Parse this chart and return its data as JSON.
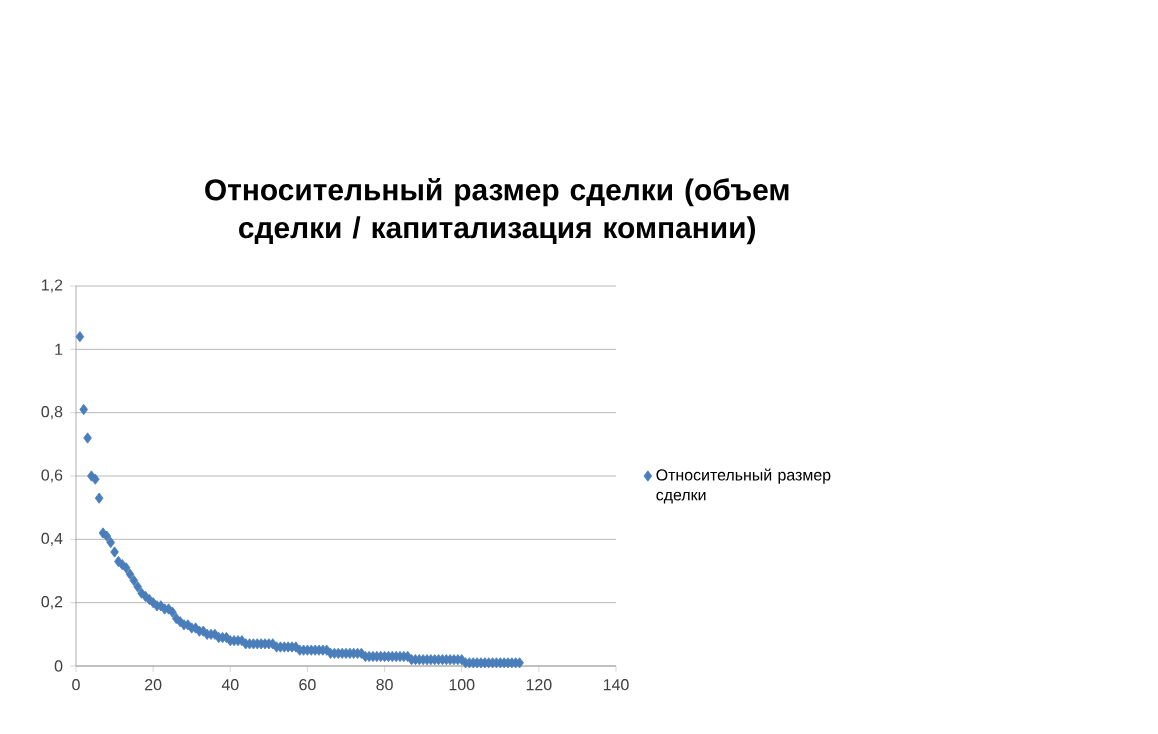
{
  "chart_data": {
    "type": "scatter",
    "title": "Относительный размер сделки (объем сделки / капитализация компании)",
    "x": [
      1,
      2,
      3,
      4,
      5,
      6,
      7,
      8,
      9,
      10,
      11,
      12,
      13,
      14,
      15,
      16,
      17,
      18,
      19,
      20,
      21,
      22,
      23,
      24,
      25,
      26,
      27,
      28,
      29,
      30,
      31,
      32,
      33,
      34,
      35,
      36,
      37,
      38,
      39,
      40,
      41,
      42,
      43,
      44,
      45,
      46,
      47,
      48,
      49,
      50,
      51,
      52,
      53,
      54,
      55,
      56,
      57,
      58,
      59,
      60,
      61,
      62,
      63,
      64,
      65,
      66,
      67,
      68,
      69,
      70,
      71,
      72,
      73,
      74,
      75,
      76,
      77,
      78,
      79,
      80,
      81,
      82,
      83,
      84,
      85,
      86,
      87,
      88,
      89,
      90,
      91,
      92,
      93,
      94,
      95,
      96,
      97,
      98,
      99,
      100,
      101,
      102,
      103,
      104,
      105,
      106,
      107,
      108,
      109,
      110,
      111,
      112,
      113,
      114,
      115
    ],
    "series": [
      {
        "name": "Относительный размер сделки",
        "color": "#4a7ebb",
        "values": [
          1.04,
          0.81,
          0.72,
          0.6,
          0.59,
          0.53,
          0.42,
          0.41,
          0.39,
          0.36,
          0.33,
          0.32,
          0.31,
          0.29,
          0.27,
          0.25,
          0.23,
          0.22,
          0.21,
          0.2,
          0.19,
          0.19,
          0.18,
          0.18,
          0.17,
          0.15,
          0.14,
          0.13,
          0.13,
          0.12,
          0.12,
          0.11,
          0.11,
          0.1,
          0.1,
          0.1,
          0.09,
          0.09,
          0.09,
          0.08,
          0.08,
          0.08,
          0.08,
          0.07,
          0.07,
          0.07,
          0.07,
          0.07,
          0.07,
          0.07,
          0.07,
          0.06,
          0.06,
          0.06,
          0.06,
          0.06,
          0.06,
          0.05,
          0.05,
          0.05,
          0.05,
          0.05,
          0.05,
          0.05,
          0.05,
          0.04,
          0.04,
          0.04,
          0.04,
          0.04,
          0.04,
          0.04,
          0.04,
          0.04,
          0.03,
          0.03,
          0.03,
          0.03,
          0.03,
          0.03,
          0.03,
          0.03,
          0.03,
          0.03,
          0.03,
          0.03,
          0.02,
          0.02,
          0.02,
          0.02,
          0.02,
          0.02,
          0.02,
          0.02,
          0.02,
          0.02,
          0.02,
          0.02,
          0.02,
          0.02,
          0.01,
          0.01,
          0.01,
          0.01,
          0.01,
          0.01,
          0.01,
          0.01,
          0.01,
          0.01,
          0.01,
          0.01,
          0.01,
          0.01,
          0.01
        ]
      }
    ],
    "xlim": [
      0,
      140
    ],
    "xticks": [
      0,
      20,
      40,
      60,
      80,
      100,
      120,
      140
    ],
    "ylim": [
      0,
      1.2
    ],
    "yticks": [
      0,
      {
        "value": 0.2,
        "label": "0,2"
      },
      {
        "value": 0.4,
        "label": "0,4"
      },
      {
        "value": 0.6,
        "label": "0,6"
      },
      {
        "value": 0.8,
        "label": "0,8"
      },
      1,
      {
        "value": 1.2,
        "label": "1,2"
      }
    ],
    "grid": "y",
    "legend": "right",
    "marker": "diamond"
  }
}
